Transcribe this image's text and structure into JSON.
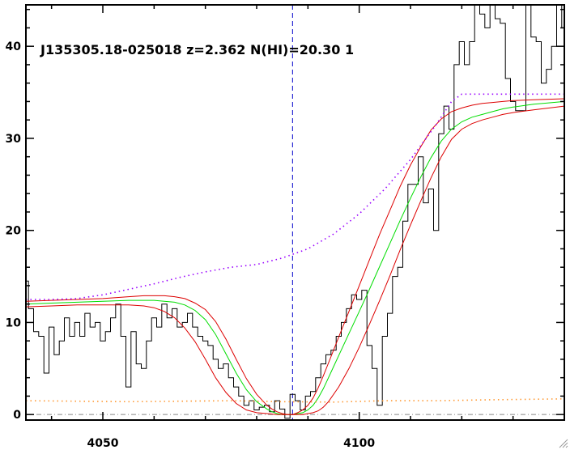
{
  "chart_data": {
    "type": "line",
    "title": "J135305.18-025018 z=2.362 N(HI)=20.30 1",
    "xlabel": "",
    "ylabel": "",
    "xlim": [
      4035,
      4140
    ],
    "ylim": [
      -0.6,
      44.5
    ],
    "x_ticks": [
      4050,
      4100
    ],
    "y_ticks": [
      0,
      10,
      20,
      30,
      40
    ],
    "grid": false,
    "vline_x": 4087,
    "colors": {
      "flux": "#000000",
      "model": "#00dd00",
      "model_bounds": "#dd0000",
      "continuum": "#9900ff",
      "error": "#ff9933",
      "vline": "#0000cc",
      "zero": "#888888"
    },
    "series": [
      {
        "style": "step",
        "color": "#000000",
        "x": [
          4035,
          4036,
          4037,
          4038,
          4039,
          4040,
          4041,
          4042,
          4043,
          4044,
          4045,
          4046,
          4047,
          4048,
          4049,
          4050,
          4051,
          4052,
          4053,
          4054,
          4055,
          4056,
          4057,
          4058,
          4059,
          4060,
          4061,
          4062,
          4063,
          4064,
          4065,
          4066,
          4067,
          4068,
          4069,
          4070,
          4071,
          4072,
          4073,
          4074,
          4075,
          4076,
          4077,
          4078,
          4079,
          4080,
          4081,
          4082,
          4083,
          4084,
          4085,
          4086,
          4087,
          4088,
          4089,
          4090,
          4091,
          4092,
          4093,
          4094,
          4095,
          4096,
          4097,
          4098,
          4099,
          4100,
          4101,
          4102,
          4103,
          4104,
          4105,
          4106,
          4107,
          4108,
          4109,
          4110,
          4111,
          4112,
          4113,
          4114,
          4115,
          4116,
          4117,
          4118,
          4119,
          4120,
          4121,
          4122,
          4123,
          4124,
          4125,
          4126,
          4127,
          4128,
          4129,
          4130,
          4131,
          4132,
          4133,
          4134,
          4135,
          4136,
          4137,
          4138,
          4139,
          4140
        ],
        "values": [
          14.5,
          11.5,
          9.0,
          8.5,
          4.5,
          9.5,
          6.5,
          8.0,
          10.5,
          8.5,
          10.0,
          8.5,
          11.0,
          9.5,
          10.0,
          8.0,
          9.0,
          10.5,
          12.0,
          8.5,
          3.0,
          9.0,
          5.5,
          5.0,
          8.0,
          10.5,
          9.5,
          12.0,
          10.5,
          11.5,
          9.5,
          10.0,
          11.0,
          9.5,
          8.5,
          8.0,
          7.5,
          6.0,
          5.0,
          5.5,
          4.0,
          3.0,
          2.0,
          1.0,
          1.5,
          0.5,
          0.8,
          1.0,
          0.3,
          1.5,
          0.6,
          -0.4,
          2.2,
          1.5,
          0.5,
          2.0,
          2.5,
          4.0,
          5.5,
          6.5,
          7.0,
          8.5,
          10.0,
          11.5,
          13.0,
          12.5,
          13.5,
          7.5,
          5.0,
          1.0,
          8.5,
          11.0,
          15.0,
          16.0,
          21.0,
          25.0,
          25.0,
          28.0,
          23.0,
          24.5,
          20.0,
          30.5,
          33.5,
          31.0,
          38.0,
          40.5,
          38.0,
          40.5,
          44.5,
          43.5,
          42.0,
          44.5,
          43.0,
          42.5,
          36.5,
          34.0,
          33.0,
          33.0,
          44.5,
          41.0,
          40.5,
          36.0,
          37.5,
          40.0,
          44.5,
          42.0
        ]
      },
      {
        "style": "line",
        "color": "#00dd00",
        "x": [
          4035,
          4040,
          4045,
          4050,
          4055,
          4058,
          4060,
          4062,
          4064,
          4066,
          4068,
          4070,
          4072,
          4074,
          4076,
          4078,
          4080,
          4082,
          4083,
          4084,
          4085,
          4086,
          4087,
          4088,
          4089,
          4090,
          4091,
          4092,
          4093,
          4094,
          4095,
          4096,
          4098,
          4100,
          4102,
          4104,
          4106,
          4108,
          4110,
          4112,
          4114,
          4116,
          4118,
          4120,
          4122,
          4124,
          4126,
          4128,
          4130,
          4134,
          4140
        ],
        "values": [
          12.0,
          12.1,
          12.2,
          12.3,
          12.4,
          12.4,
          12.4,
          12.3,
          12.2,
          11.9,
          11.3,
          10.3,
          8.7,
          6.6,
          4.5,
          2.7,
          1.4,
          0.6,
          0.3,
          0.1,
          0.0,
          0.0,
          0.0,
          0.1,
          0.2,
          0.5,
          1.0,
          1.8,
          2.8,
          4.0,
          5.2,
          6.4,
          8.8,
          11.2,
          13.6,
          16.1,
          18.6,
          21.1,
          23.5,
          25.8,
          27.9,
          29.7,
          31.0,
          31.8,
          32.3,
          32.6,
          32.9,
          33.2,
          33.4,
          33.7,
          34.0
        ]
      },
      {
        "style": "line",
        "color": "#dd0000",
        "x": [
          4035,
          4040,
          4045,
          4050,
          4055,
          4058,
          4060,
          4062,
          4064,
          4066,
          4068,
          4070,
          4072,
          4074,
          4076,
          4078,
          4080,
          4082,
          4083,
          4084,
          4085,
          4086,
          4087,
          4088,
          4089,
          4090,
          4091,
          4092,
          4093,
          4094,
          4096,
          4098,
          4100,
          4102,
          4104,
          4106,
          4108,
          4110,
          4112,
          4114,
          4116,
          4118,
          4120,
          4122,
          4124,
          4126,
          4128,
          4130,
          4134,
          4140
        ],
        "values": [
          12.3,
          12.4,
          12.5,
          12.6,
          12.8,
          12.9,
          12.9,
          12.9,
          12.8,
          12.6,
          12.1,
          11.4,
          10.1,
          8.2,
          6.0,
          3.9,
          2.2,
          1.0,
          0.6,
          0.3,
          0.1,
          0.0,
          0.0,
          0.2,
          0.5,
          1.0,
          1.8,
          2.9,
          4.2,
          5.6,
          8.4,
          11.2,
          14.0,
          16.8,
          19.6,
          22.2,
          24.8,
          27.1,
          29.1,
          30.9,
          32.1,
          32.9,
          33.3,
          33.6,
          33.8,
          33.9,
          34.0,
          34.1,
          34.2,
          34.3
        ]
      },
      {
        "style": "line",
        "color": "#dd0000",
        "x": [
          4035,
          4040,
          4045,
          4050,
          4055,
          4058,
          4060,
          4062,
          4064,
          4066,
          4068,
          4070,
          4072,
          4074,
          4076,
          4078,
          4080,
          4082,
          4084,
          4086,
          4088,
          4089,
          4090,
          4091,
          4092,
          4093,
          4094,
          4096,
          4098,
          4100,
          4102,
          4104,
          4106,
          4108,
          4110,
          4112,
          4114,
          4116,
          4118,
          4120,
          4122,
          4124,
          4126,
          4128,
          4130,
          4134,
          4140
        ],
        "values": [
          11.7,
          11.8,
          11.9,
          11.9,
          11.9,
          11.8,
          11.6,
          11.2,
          10.5,
          9.4,
          7.9,
          6.0,
          4.0,
          2.4,
          1.2,
          0.5,
          0.2,
          0.1,
          0.0,
          0.0,
          0.0,
          0.0,
          0.1,
          0.2,
          0.4,
          0.8,
          1.4,
          3.0,
          5.0,
          7.3,
          9.8,
          12.4,
          15.1,
          17.9,
          20.6,
          23.2,
          25.7,
          28.0,
          29.9,
          31.0,
          31.6,
          32.0,
          32.3,
          32.6,
          32.8,
          33.1,
          33.5
        ]
      },
      {
        "style": "dotted",
        "color": "#9900ff",
        "x": [
          4035,
          4040,
          4045,
          4050,
          4055,
          4060,
          4065,
          4070,
          4075,
          4080,
          4085,
          4090,
          4095,
          4100,
          4105,
          4110,
          4115,
          4118,
          4120,
          4125,
          4130,
          4135,
          4140
        ],
        "values": [
          12.5,
          12.5,
          12.6,
          13.0,
          13.6,
          14.2,
          14.9,
          15.5,
          16.0,
          16.3,
          17.0,
          18.0,
          19.6,
          21.8,
          24.5,
          27.7,
          31.5,
          34.0,
          34.8,
          34.8,
          34.8,
          34.8,
          34.8
        ]
      },
      {
        "style": "dotted",
        "color": "#ff9933",
        "x": [
          4035,
          4045,
          4055,
          4065,
          4075,
          4085,
          4095,
          4105,
          4115,
          4125,
          4140
        ],
        "values": [
          1.5,
          1.45,
          1.4,
          1.45,
          1.5,
          1.4,
          1.35,
          1.5,
          1.5,
          1.6,
          1.7
        ]
      }
    ]
  }
}
